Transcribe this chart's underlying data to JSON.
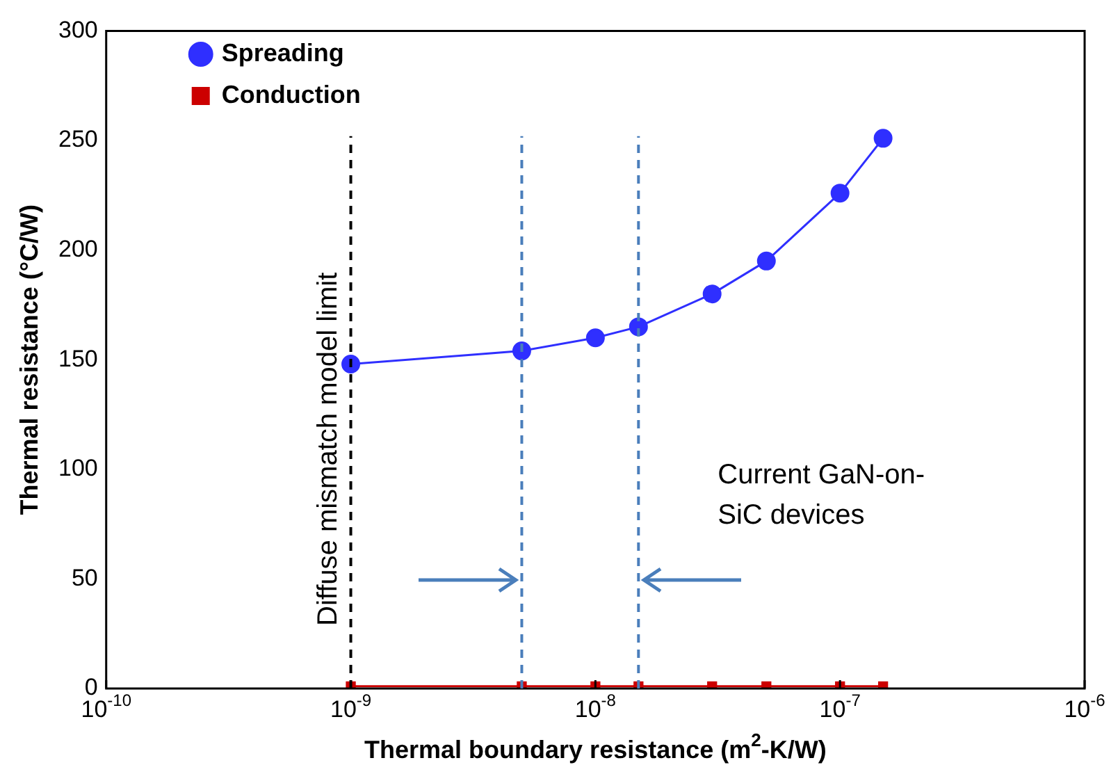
{
  "chart_data": {
    "type": "line",
    "xlabel": "Thermal boundary resistance (m$^{2}$-K/W)",
    "ylabel": "Thermal resistance (°C/W)",
    "x": [
      1e-09,
      5e-09,
      1e-08,
      1.5e-08,
      3e-08,
      5e-08,
      1e-07,
      1.5e-07
    ],
    "series": [
      {
        "name": "Spreading",
        "color": "#2f2fff",
        "marker": "circle",
        "values": [
          148,
          154,
          160,
          165,
          180,
          195,
          226,
          251
        ]
      },
      {
        "name": "Conduction",
        "color": "#cc0000",
        "marker": "square",
        "values": [
          1,
          1,
          1,
          1,
          1,
          1,
          1,
          1
        ]
      }
    ],
    "log": "x",
    "xlim": [
      1e-10,
      1e-06
    ],
    "xticks": [
      {
        "value": 1e-10,
        "label": "10$^{-10}$"
      },
      {
        "value": 1e-09,
        "label": "10$^{-9}$"
      },
      {
        "value": 1e-08,
        "label": "10$^{-8}$"
      },
      {
        "value": 1e-07,
        "label": "10$^{-7}$"
      },
      {
        "value": 1e-06,
        "label": "10$^{-6}$"
      }
    ],
    "ylim": [
      0,
      300
    ],
    "yticks": [
      0,
      50,
      100,
      150,
      200,
      250,
      300
    ],
    "grid": false,
    "legend": "top left",
    "line_style": "solid",
    "ref_lines": [
      {
        "axis": "x",
        "value": 1e-09,
        "label": "Diffuse mismatch model limit",
        "color": "#000000",
        "line_style": "dashed"
      },
      {
        "axis": "x",
        "value": 5e-09,
        "color": "#4a7ebb",
        "line_style": "dashed"
      },
      {
        "axis": "x",
        "value": 1.5e-08,
        "color": "#4a7ebb",
        "line_style": "dashed"
      }
    ],
    "annotations": [
      "Current GaN-on-SiC devices"
    ]
  }
}
